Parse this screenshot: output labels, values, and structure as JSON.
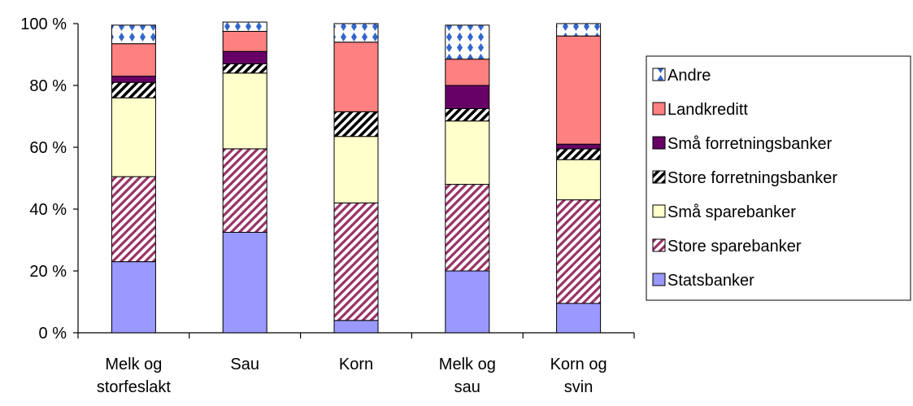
{
  "chart_data": {
    "type": "bar",
    "stacked": "percent",
    "categories": [
      [
        "Melk og",
        "storfeslakt"
      ],
      [
        "Sau"
      ],
      [
        "Korn"
      ],
      [
        "Melk og",
        "sau"
      ],
      [
        "Korn og",
        "svin"
      ]
    ],
    "y_ticks": [
      "0 %",
      "20 %",
      "40 %",
      "60 %",
      "80 %",
      "100 %"
    ],
    "ylim": [
      0,
      100
    ],
    "grid": false,
    "legend_position": "right",
    "series": [
      {
        "name": "Statsbanker",
        "color": "#9999ff",
        "pattern": "solid",
        "values": [
          23,
          32.5,
          4,
          20,
          9.5
        ]
      },
      {
        "name": "Store sparebanker",
        "color": "#993366",
        "pattern": "diagonal-stripes",
        "values": [
          27.5,
          27,
          38,
          28,
          33.5
        ]
      },
      {
        "name": "Små sparebanker",
        "color": "#ffffcc",
        "pattern": "solid",
        "values": [
          25.5,
          24.5,
          21.5,
          20.5,
          13
        ]
      },
      {
        "name": "Store forretningsbanker",
        "color": "#000000",
        "pattern": "diagonal-stripes",
        "values": [
          5,
          3,
          8,
          4,
          3.5
        ]
      },
      {
        "name": "Små forretningsbanker",
        "color": "#660066",
        "pattern": "solid",
        "values": [
          2,
          4,
          0,
          7.5,
          1.5
        ]
      },
      {
        "name": "Landkreditt",
        "color": "#ff8080",
        "pattern": "solid",
        "values": [
          10.5,
          6.5,
          22.5,
          8.5,
          35
        ]
      },
      {
        "name": "Andre",
        "color": "#3366cc",
        "pattern": "dots",
        "values": [
          6,
          3,
          6,
          11,
          4
        ]
      }
    ]
  }
}
